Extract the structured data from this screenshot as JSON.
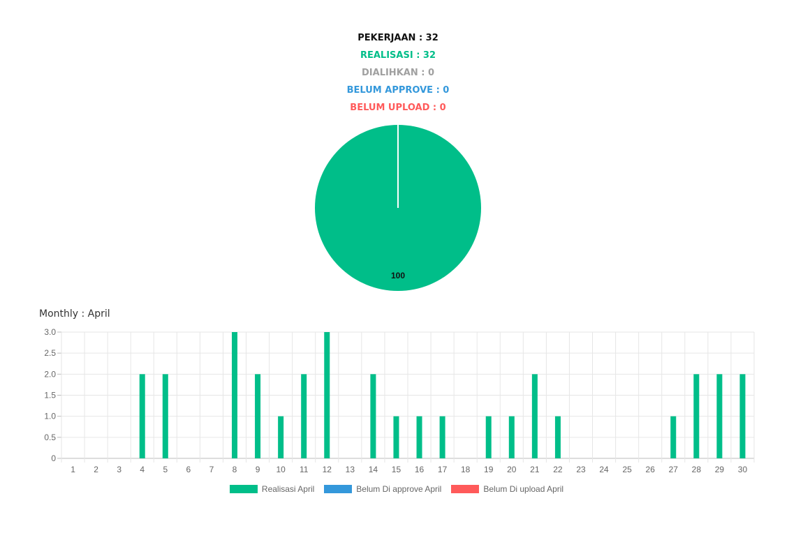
{
  "summary": {
    "pekerjaan": "PEKERJAAN : 32",
    "realisasi": "REALISASI : 32",
    "dialihkan": "DIALIHKAN : 0",
    "belum_approve": "BELUM APPROVE : 0",
    "belum_upload": "BELUM UPLOAD : 0"
  },
  "colors": {
    "realisasi": "#00be89",
    "dialihkan": "#a0a0a0",
    "belum_approve": "#3498db",
    "belum_upload": "#ff5a5a",
    "pekerjaan": "#111111"
  },
  "monthly_title": "Monthly : April",
  "chart_data": [
    {
      "type": "pie",
      "slices": [
        {
          "label": "Realisasi",
          "value": 100,
          "color": "#00be89"
        },
        {
          "label": "Belum Di approve",
          "value": 0,
          "color": "#3498db"
        },
        {
          "label": "Belum Di upload",
          "value": 0,
          "color": "#ff5a5a"
        }
      ],
      "data_label": "100"
    },
    {
      "type": "bar",
      "categories": [
        "1",
        "2",
        "3",
        "4",
        "5",
        "6",
        "7",
        "8",
        "9",
        "10",
        "11",
        "12",
        "13",
        "14",
        "15",
        "16",
        "17",
        "18",
        "19",
        "20",
        "21",
        "22",
        "23",
        "24",
        "25",
        "26",
        "27",
        "28",
        "29",
        "30"
      ],
      "series": [
        {
          "name": "Realisasi April",
          "color": "#00be89",
          "values": [
            0,
            0,
            0,
            2,
            2,
            0,
            0,
            3,
            2,
            1,
            2,
            3,
            0,
            2,
            1,
            1,
            1,
            0,
            1,
            1,
            2,
            1,
            0,
            0,
            0,
            0,
            1,
            2,
            2,
            2
          ]
        },
        {
          "name": "Belum Di approve April",
          "color": "#3498db",
          "values": [
            0,
            0,
            0,
            0,
            0,
            0,
            0,
            0,
            0,
            0,
            0,
            0,
            0,
            0,
            0,
            0,
            0,
            0,
            0,
            0,
            0,
            0,
            0,
            0,
            0,
            0,
            0,
            0,
            0,
            0
          ]
        },
        {
          "name": "Belum Di upload April",
          "color": "#ff5a5a",
          "values": [
            0,
            0,
            0,
            0,
            0,
            0,
            0,
            0,
            0,
            0,
            0,
            0,
            0,
            0,
            0,
            0,
            0,
            0,
            0,
            0,
            0,
            0,
            0,
            0,
            0,
            0,
            0,
            0,
            0,
            0
          ]
        }
      ],
      "yticks": [
        "0",
        "0.5",
        "1.0",
        "1.5",
        "2.0",
        "2.5",
        "3.0"
      ],
      "ylim": [
        0,
        3
      ],
      "grid": true,
      "legend": "bottom"
    }
  ]
}
